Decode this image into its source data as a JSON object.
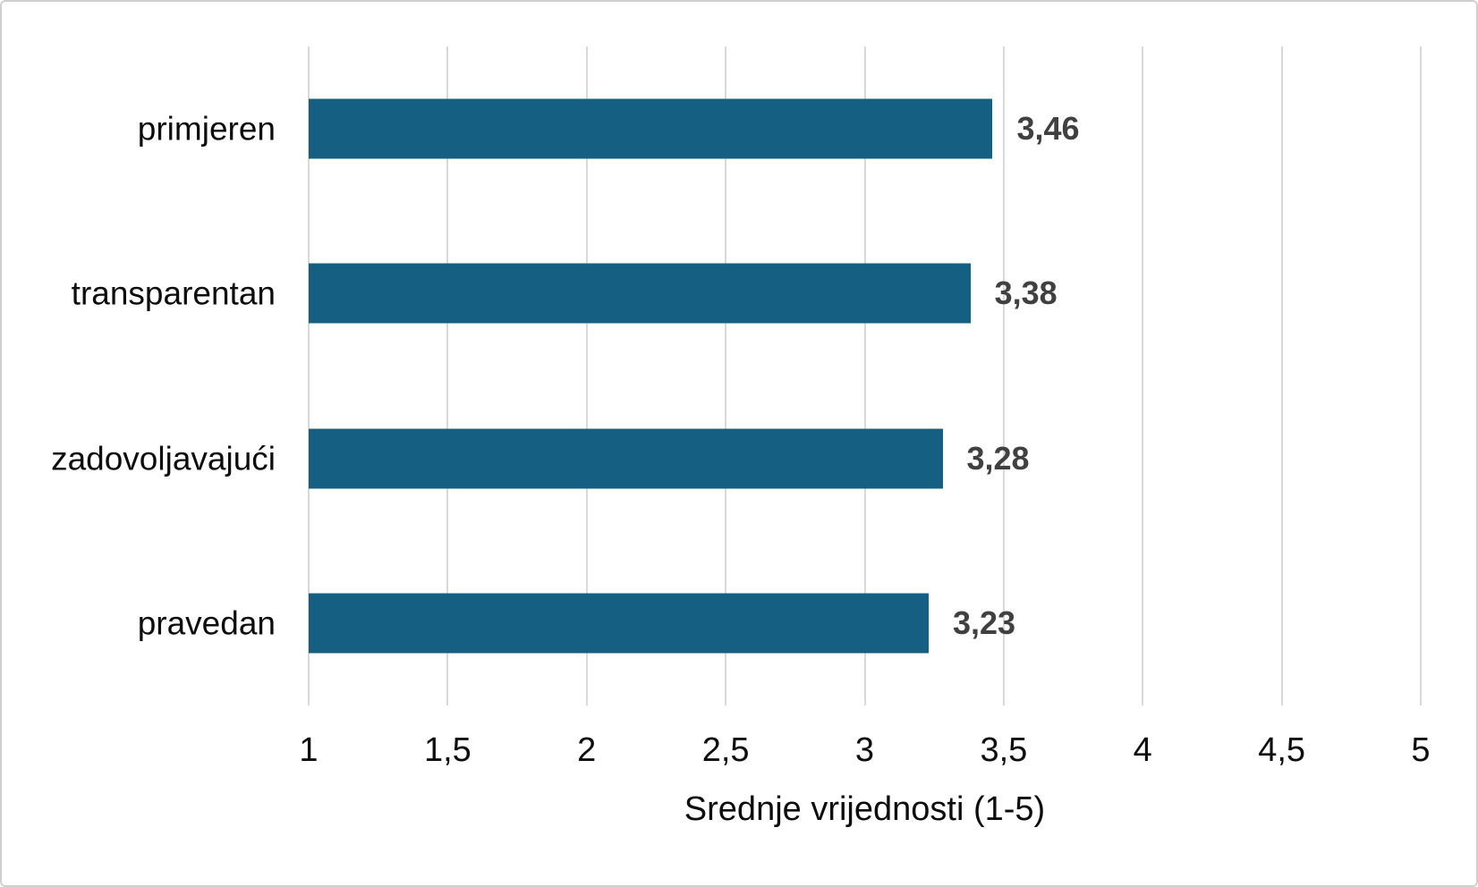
{
  "chart_data": {
    "type": "bar",
    "orientation": "horizontal",
    "xlabel": "Srednje vrijednosti (1-5)",
    "categories": [
      "primjeren",
      "transparentan",
      "zadovoljavajući",
      "pravedan"
    ],
    "values": [
      3.46,
      3.38,
      3.28,
      3.23
    ],
    "value_labels": [
      "3,46",
      "3,38",
      "3,28",
      "3,23"
    ],
    "xlim": [
      1,
      5
    ],
    "xticks": [
      1,
      1.5,
      2,
      2.5,
      3,
      3.5,
      4,
      4.5,
      5
    ],
    "xtick_labels": [
      "1",
      "1,5",
      "2",
      "2,5",
      "3",
      "3,5",
      "4",
      "4,5",
      "5"
    ],
    "grid": "vertical-only",
    "legend": "none",
    "colors": {
      "bar": "#156082",
      "value_label": "#404040",
      "axis_text": "#0d0d0d",
      "gridline": "#d9d9d9",
      "background": "#ffffff",
      "border": "#d0d0d0"
    }
  }
}
